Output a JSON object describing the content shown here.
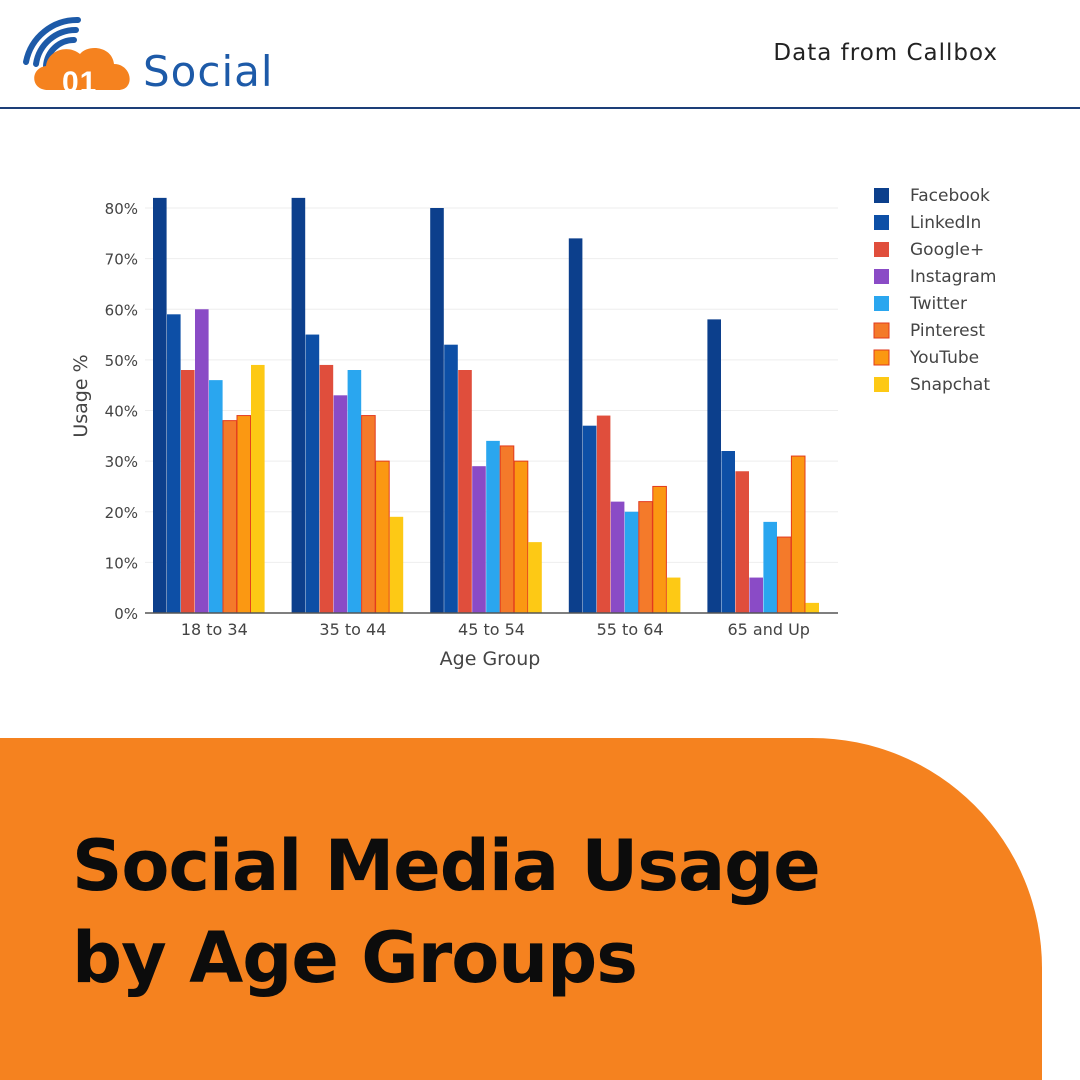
{
  "brand": {
    "badge": "01",
    "name": "Social"
  },
  "source": "Data from Callbox",
  "headline": {
    "line1": "Social Media Usage",
    "line2": "by Age Groups"
  },
  "colors": {
    "brand_orange": "#f5821f",
    "brand_blue": "#1d5aa8",
    "Facebook": "#0c3f8c",
    "LinkedIn": "#0d4fa6",
    "Google+": "#e04e3c",
    "Instagram": "#8a4bc6",
    "Twitter": "#2aa6ef",
    "Pinterest": "#f47a2a",
    "YouTube": "#fb9812",
    "Snapchat": "#fdc915"
  },
  "chart_data": {
    "type": "bar",
    "title": "",
    "xlabel": "Age Group",
    "ylabel": "Usage %",
    "ylim": [
      0,
      80
    ],
    "yticks": [
      "0%",
      "10%",
      "20%",
      "30%",
      "40%",
      "50%",
      "60%",
      "70%",
      "80%"
    ],
    "grid": true,
    "legend": "right",
    "categories": [
      "18 to 34",
      "35 to 44",
      "45 to 54",
      "55 to 64",
      "65 and Up"
    ],
    "series": [
      {
        "name": "Facebook",
        "values": [
          82,
          82,
          80,
          74,
          58
        ]
      },
      {
        "name": "LinkedIn",
        "values": [
          59,
          55,
          53,
          37,
          32
        ]
      },
      {
        "name": "Google+",
        "values": [
          48,
          49,
          48,
          39,
          28
        ]
      },
      {
        "name": "Instagram",
        "values": [
          60,
          43,
          29,
          22,
          7
        ]
      },
      {
        "name": "Twitter",
        "values": [
          46,
          48,
          34,
          20,
          18
        ]
      },
      {
        "name": "Pinterest",
        "values": [
          38,
          39,
          33,
          22,
          15
        ]
      },
      {
        "name": "YouTube",
        "values": [
          39,
          30,
          30,
          25,
          31
        ]
      },
      {
        "name": "Snapchat",
        "values": [
          49,
          19,
          14,
          7,
          2
        ]
      }
    ]
  }
}
